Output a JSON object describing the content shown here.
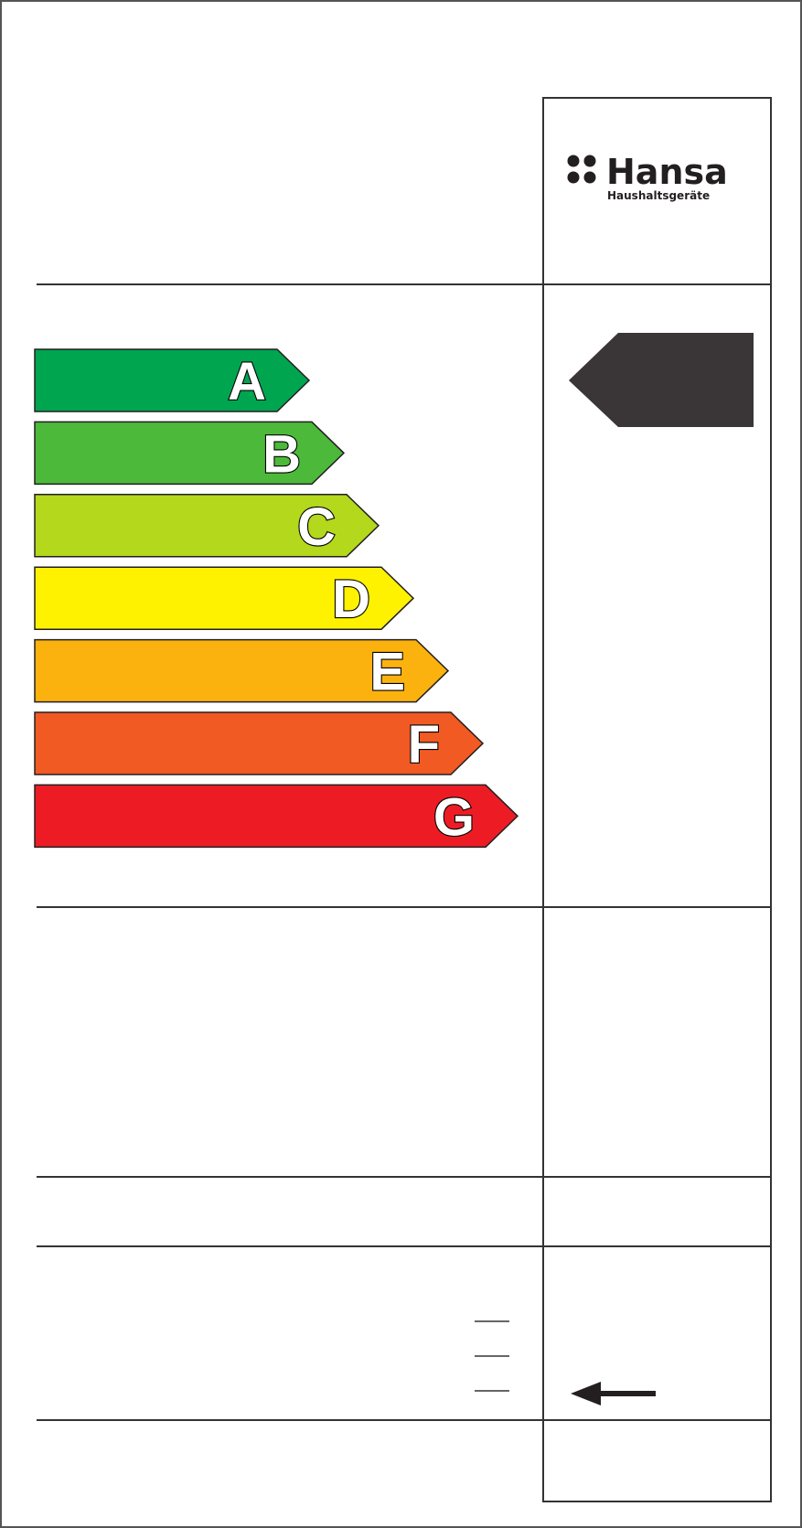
{
  "brand": {
    "name": "Hansa",
    "tagline": "Haushaltsgeräte",
    "icon": "four-dots-logo-icon"
  },
  "energy_classes": [
    {
      "label": "A",
      "color": "#00a550"
    },
    {
      "label": "B",
      "color": "#4cb93a"
    },
    {
      "label": "C",
      "color": "#b3d81c"
    },
    {
      "label": "D",
      "color": "#fff200"
    },
    {
      "label": "E",
      "color": "#fbb20f"
    },
    {
      "label": "F",
      "color": "#f15a22"
    },
    {
      "label": "G",
      "color": "#ed1c24"
    }
  ],
  "rating_indicator": {
    "color": "#3a3536",
    "icon": "rating-arrow-icon"
  },
  "pointer_arrow": {
    "icon": "left-arrow-icon"
  }
}
